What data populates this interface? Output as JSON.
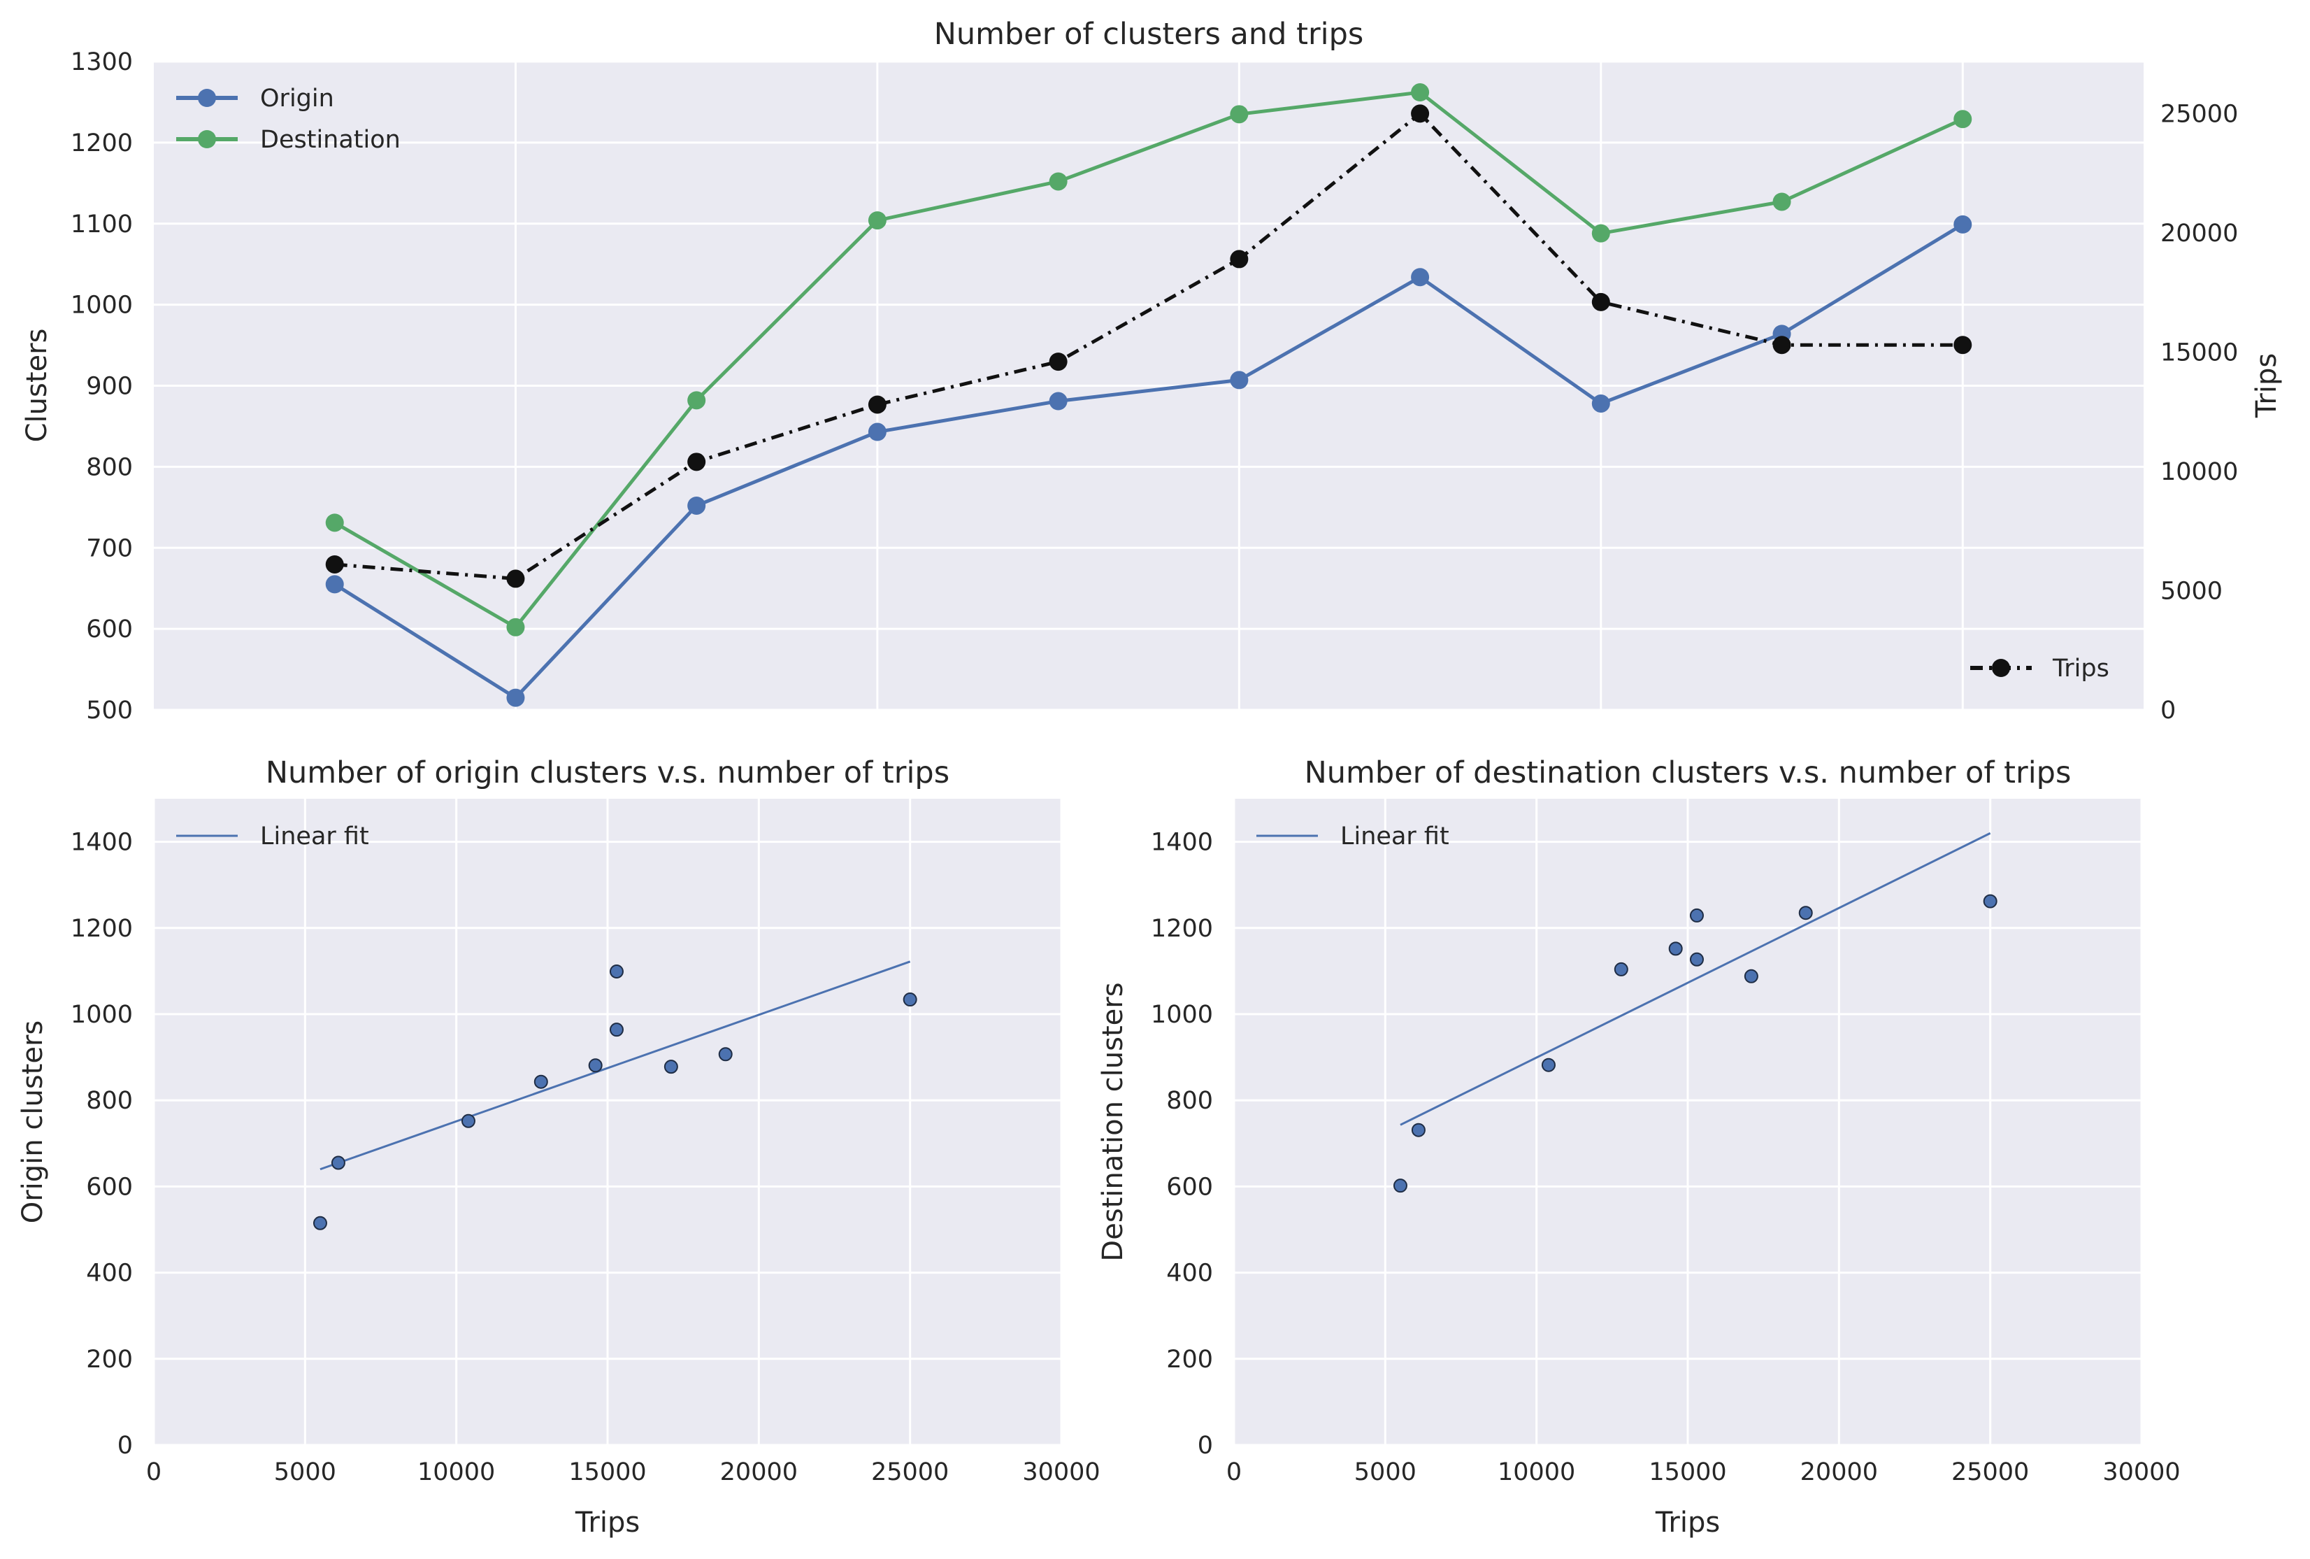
{
  "chart_data": [
    {
      "type": "line",
      "title": "Number of clusters and trips",
      "ylabel": "Clusters",
      "y2label": "Trips",
      "ylim": [
        500,
        1300
      ],
      "y2lim": [
        0,
        26000
      ],
      "yticks": [
        "500",
        "600",
        "700",
        "800",
        "900",
        "1000",
        "1100",
        "1200",
        "1300"
      ],
      "y2ticks": [
        "0",
        "5000",
        "10000",
        "15000",
        "20000",
        "25000"
      ],
      "x": [
        1,
        2,
        3,
        4,
        5,
        6,
        7,
        8,
        9,
        10
      ],
      "xlim": [
        0,
        11
      ],
      "xticks": [
        2,
        4,
        6,
        8,
        10
      ],
      "grid": true,
      "legend": "upper left",
      "legend2": "lower right",
      "series": [
        {
          "name": "Origin",
          "axis": "left",
          "color": "#4c72b0",
          "style": "solid",
          "values": [
            655,
            515,
            752,
            843,
            881,
            907,
            1034,
            878,
            964,
            1099
          ]
        },
        {
          "name": "Destination",
          "axis": "left",
          "color": "#55a868",
          "style": "solid",
          "values": [
            731,
            602,
            882,
            1104,
            1152,
            1235,
            1262,
            1088,
            1127,
            1229
          ]
        },
        {
          "name": "Trips",
          "axis": "right",
          "color": "#111111",
          "style": "dashdot",
          "values": [
            6100,
            5500,
            10400,
            12800,
            14600,
            18900,
            25000,
            17100,
            15300,
            15300
          ]
        }
      ]
    },
    {
      "type": "scatter",
      "title": "Number of origin clusters v.s. number of trips",
      "xlabel": "Trips",
      "ylabel": "Origin clusters",
      "xlim": [
        0,
        30000
      ],
      "ylim": [
        0,
        1500
      ],
      "xticks": [
        "0",
        "5000",
        "10000",
        "15000",
        "20000",
        "25000",
        "30000"
      ],
      "yticks": [
        "0",
        "200",
        "400",
        "600",
        "800",
        "1000",
        "1200",
        "1400"
      ],
      "legend": "upper left",
      "points": [
        [
          6100,
          655
        ],
        [
          5500,
          515
        ],
        [
          10400,
          752
        ],
        [
          12800,
          843
        ],
        [
          14600,
          881
        ],
        [
          18900,
          907
        ],
        [
          25000,
          1034
        ],
        [
          17100,
          878
        ],
        [
          15300,
          964
        ],
        [
          15300,
          1099
        ]
      ],
      "fit": {
        "name": "Linear fit",
        "x": [
          5500,
          25000
        ],
        "y": [
          640,
          1122
        ]
      }
    },
    {
      "type": "scatter",
      "title": "Number of destination clusters v.s. number of trips",
      "xlabel": "Trips",
      "ylabel": "Destination clusters",
      "xlim": [
        0,
        30000
      ],
      "ylim": [
        0,
        1500
      ],
      "xticks": [
        "0",
        "5000",
        "10000",
        "15000",
        "20000",
        "25000",
        "30000"
      ],
      "yticks": [
        "0",
        "200",
        "400",
        "600",
        "800",
        "1000",
        "1200",
        "1400"
      ],
      "legend": "upper left",
      "points": [
        [
          6100,
          731
        ],
        [
          5500,
          602
        ],
        [
          10400,
          882
        ],
        [
          12800,
          1104
        ],
        [
          14600,
          1152
        ],
        [
          18900,
          1235
        ],
        [
          25000,
          1262
        ],
        [
          17100,
          1088
        ],
        [
          15300,
          1127
        ],
        [
          15300,
          1229
        ]
      ],
      "fit": {
        "name": "Linear fit",
        "x": [
          5500,
          25000
        ],
        "y": [
          743,
          1420
        ]
      }
    }
  ],
  "colors": {
    "background": "#eaeaf2",
    "grid": "#ffffff",
    "scatter": "#4c72b0"
  }
}
